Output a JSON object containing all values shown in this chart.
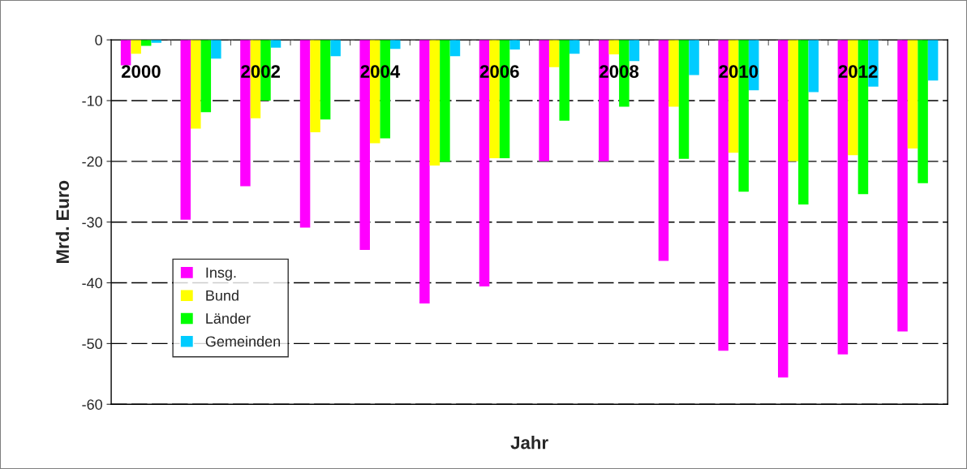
{
  "chart_data": {
    "type": "bar",
    "xlabel": "Jahr",
    "ylabel": "Mrd. Euro",
    "categories": [
      "2000",
      null,
      "2002",
      null,
      "2004",
      null,
      "2006",
      null,
      "2008",
      null,
      "2010",
      null,
      "2012",
      null
    ],
    "series": [
      {
        "name": "Insg.",
        "color": "#ff00ff",
        "values": [
          -4.2,
          -29.6,
          -24.1,
          -30.9,
          -34.6,
          -43.4,
          -40.6,
          -20.0,
          -20.0,
          -36.4,
          -51.2,
          -55.6,
          -51.8,
          -48.0
        ]
      },
      {
        "name": "Bund",
        "color": "#ffff00",
        "values": [
          -2.3,
          -14.6,
          -12.9,
          -15.2,
          -17.0,
          -20.7,
          -19.5,
          -4.5,
          -2.4,
          -11.0,
          -18.6,
          -20.0,
          -19.0,
          -17.9
        ]
      },
      {
        "name": "Länder",
        "color": "#00ff00",
        "values": [
          -1.0,
          -11.9,
          -10.0,
          -13.1,
          -16.2,
          -20.1,
          -19.5,
          -13.3,
          -11.0,
          -19.6,
          -25.0,
          -27.1,
          -25.4,
          -23.6
        ]
      },
      {
        "name": "Gemeinden",
        "color": "#00ccff",
        "values": [
          -0.5,
          -3.1,
          -1.3,
          -2.7,
          -1.5,
          -2.7,
          -1.6,
          -2.3,
          -3.5,
          -5.8,
          -8.3,
          -8.6,
          -7.7,
          -6.7
        ]
      }
    ],
    "ylim": [
      -60,
      0
    ],
    "yticks": [
      0,
      -10,
      -20,
      -30,
      -40,
      -50,
      -60
    ],
    "grid": "y",
    "legend": "bottom left"
  }
}
